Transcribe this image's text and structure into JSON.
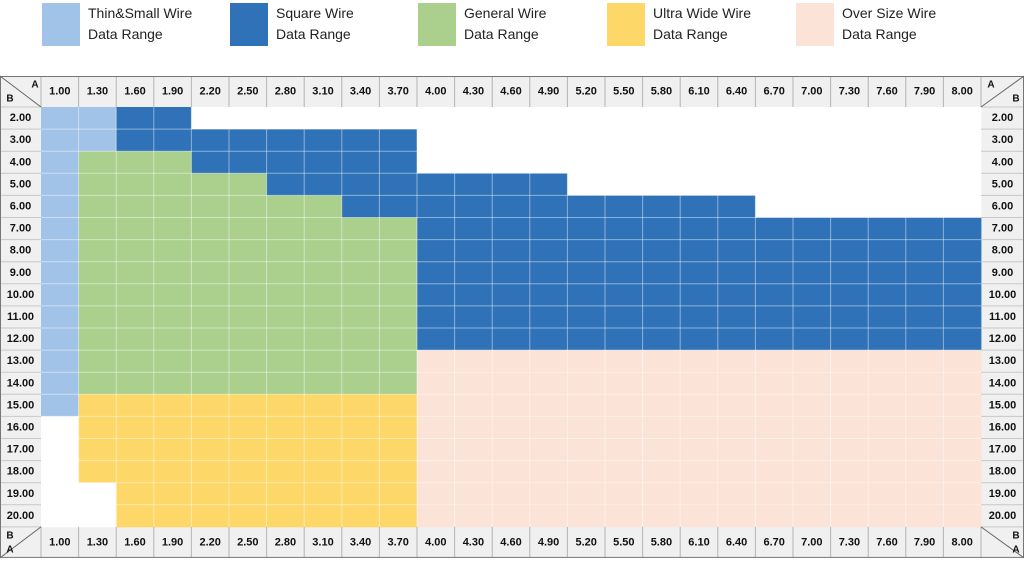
{
  "legend": [
    {
      "line1": "Thin&Small Wire",
      "line2": "Data Range",
      "color": "#a2c3e8"
    },
    {
      "line1": "Square Wire",
      "line2": "Data Range",
      "color": "#2f72b8"
    },
    {
      "line1": "General Wire",
      "line2": "Data Range",
      "color": "#abd08e"
    },
    {
      "line1": "Ultra Wide Wire",
      "line2": "Data Range",
      "color": "#fdd868"
    },
    {
      "line1": "Over Size Wire",
      "line2": "Data Range",
      "color": "#fbe3d8"
    }
  ],
  "chart_data": {
    "type": "heatmap",
    "corner_labels": {
      "col_axis": "A",
      "row_axis": "B"
    },
    "columns": [
      "1.00",
      "1.30",
      "1.60",
      "1.90",
      "2.20",
      "2.50",
      "2.80",
      "3.10",
      "3.40",
      "3.70",
      "4.00",
      "4.30",
      "4.60",
      "4.90",
      "5.20",
      "5.50",
      "5.80",
      "6.10",
      "6.40",
      "6.70",
      "7.00",
      "7.30",
      "7.60",
      "7.90",
      "8.00"
    ],
    "rows": [
      "2.00",
      "3.00",
      "4.00",
      "5.00",
      "6.00",
      "7.00",
      "8.00",
      "9.00",
      "10.00",
      "11.00",
      "12.00",
      "13.00",
      "14.00",
      "15.00",
      "16.00",
      "17.00",
      "18.00",
      "19.00",
      "20.00"
    ],
    "legend_codes": {
      "1": "Thin&Small Wire",
      "2": "Square Wire",
      "3": "General Wire",
      "4": "Ultra Wide Wire",
      "5": "Over Size Wire",
      "0": "none"
    },
    "cells": [
      "1122000000000000000000000",
      "1122222222000000000000000",
      "1333222222000000000000000",
      "1333332222222200000000000",
      "1333333322222222222000000",
      "1333333333222222222222222",
      "1333333333222222222222222",
      "1333333333222222222222222",
      "1333333333222222222222222",
      "1333333333222222222222222",
      "1333333333222222222222222",
      "1333333333555555555555555",
      "1333333333555555555555555",
      "1444444444555555555555555",
      "0444444444555555555555555",
      "0444444444555555555555555",
      "0444444444555555555555555",
      "0044444444555555555555555",
      "0044444444555555555555555"
    ]
  }
}
